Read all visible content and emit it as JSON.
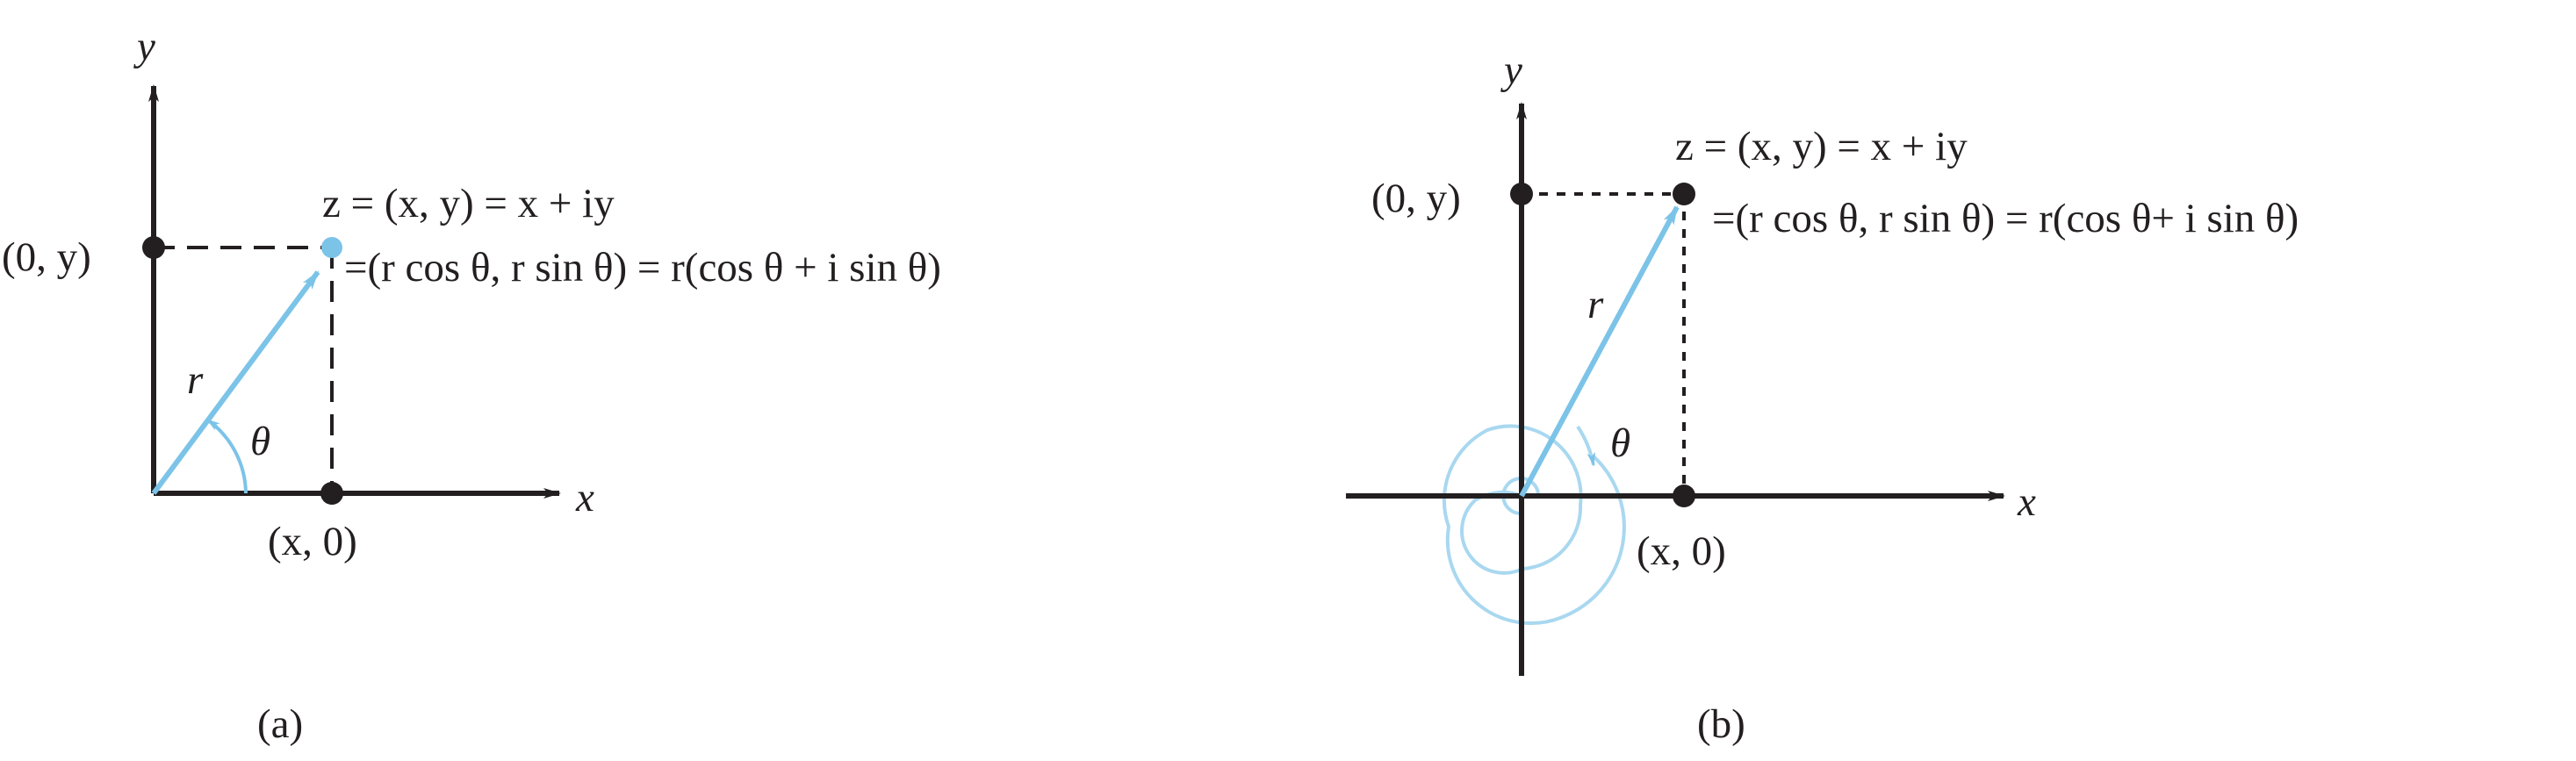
{
  "colors": {
    "ink": "#231f20",
    "vector": "#7cc3e8",
    "vector_light": "#a9d8f0",
    "background": "#ffffff"
  },
  "panel_a": {
    "caption": "(a)",
    "y_axis_label": "y",
    "x_axis_label": "x",
    "point_label_y": "(0, y)",
    "point_label_x": "(x, 0)",
    "z_line1": "z = (x, y) = x + iy",
    "z_line2": "=(r cos θ, r sin θ) = r(cos θ + i sin θ)",
    "r_label": "r",
    "theta_label": "θ"
  },
  "panel_b": {
    "caption": "(b)",
    "y_axis_label": "y",
    "x_axis_label": "x",
    "point_label_y": "(0, y)",
    "point_label_x": "(x, 0)",
    "z_line1": "z = (x, y) = x + iy",
    "z_line2": "=(r cos θ, r sin θ) = r(cos θ+ i sin θ)",
    "r_label": "r",
    "theta_label": "θ"
  }
}
